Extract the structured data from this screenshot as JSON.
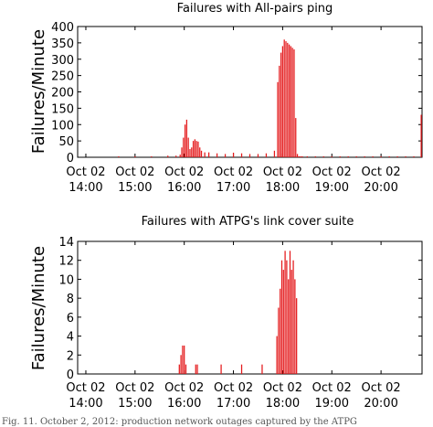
{
  "chart_data": [
    {
      "type": "bar",
      "title": "Failures with All-pairs ping",
      "ylabel": "Failures/Minute",
      "xlabel": "",
      "ylim": [
        0,
        400
      ],
      "yticks": [
        0,
        50,
        100,
        150,
        200,
        250,
        300,
        350,
        400
      ],
      "xlim": [
        830,
        1250
      ],
      "xtick_values": [
        840,
        900,
        960,
        1020,
        1080,
        1140,
        1200
      ],
      "xtick_labels": [
        [
          "Oct 02",
          "14:00"
        ],
        [
          "Oct 02",
          "15:00"
        ],
        [
          "Oct 02",
          "16:00"
        ],
        [
          "Oct 02",
          "17:00"
        ],
        [
          "Oct 02",
          "18:00"
        ],
        [
          "Oct 02",
          "19:00"
        ],
        [
          "Oct 02",
          "20:00"
        ]
      ],
      "bar_color": "#e41a1c",
      "x": [
        880,
        900,
        920,
        940,
        950,
        955,
        957,
        959,
        961,
        963,
        965,
        967,
        969,
        971,
        973,
        975,
        977,
        979,
        981,
        985,
        990,
        1000,
        1010,
        1020,
        1030,
        1040,
        1050,
        1060,
        1070,
        1074,
        1076,
        1078,
        1080,
        1082,
        1084,
        1086,
        1088,
        1090,
        1092,
        1094,
        1096,
        1098,
        1100,
        1102,
        1104,
        1110,
        1120,
        1130,
        1140,
        1150,
        1160,
        1170,
        1180,
        1190,
        1200,
        1210,
        1220,
        1230,
        1240,
        1249
      ],
      "values": [
        3,
        3,
        3,
        5,
        5,
        8,
        30,
        60,
        100,
        115,
        60,
        25,
        30,
        50,
        55,
        50,
        48,
        30,
        20,
        15,
        15,
        12,
        10,
        14,
        12,
        10,
        10,
        12,
        20,
        230,
        280,
        320,
        340,
        360,
        355,
        350,
        345,
        340,
        335,
        330,
        120,
        10,
        3,
        3,
        3,
        3,
        3,
        3,
        3,
        3,
        3,
        3,
        3,
        3,
        3,
        3,
        3,
        3,
        3,
        130
      ]
    },
    {
      "type": "bar",
      "title": "Failures with ATPG's link cover suite",
      "ylabel": "Failures/Minute",
      "xlabel": "",
      "ylim": [
        0,
        14
      ],
      "yticks": [
        0,
        2,
        4,
        6,
        8,
        10,
        12,
        14
      ],
      "xlim": [
        830,
        1250
      ],
      "xtick_values": [
        840,
        900,
        960,
        1020,
        1080,
        1140,
        1200
      ],
      "xtick_labels": [
        [
          "Oct 02",
          "14:00"
        ],
        [
          "Oct 02",
          "15:00"
        ],
        [
          "Oct 02",
          "16:00"
        ],
        [
          "Oct 02",
          "17:00"
        ],
        [
          "Oct 02",
          "18:00"
        ],
        [
          "Oct 02",
          "19:00"
        ],
        [
          "Oct 02",
          "20:00"
        ]
      ],
      "bar_color": "#e41a1c",
      "x": [
        954,
        956,
        958,
        960,
        962,
        974,
        976,
        1005,
        1030,
        1055,
        1073,
        1075,
        1077,
        1079,
        1081,
        1083,
        1085,
        1087,
        1089,
        1091,
        1093,
        1095,
        1097
      ],
      "values": [
        1,
        2,
        3,
        3,
        1,
        1,
        1,
        1,
        1,
        1,
        4,
        7,
        9,
        12,
        11,
        13,
        12,
        10,
        13,
        11,
        12,
        10,
        8
      ]
    }
  ],
  "caption": "Fig. 11.   October 2, 2012: production network outages captured by the ATPG"
}
